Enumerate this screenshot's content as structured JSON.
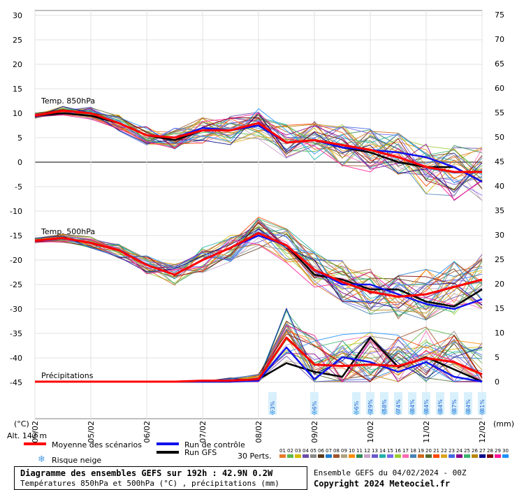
{
  "chart_data": {
    "type": "line",
    "left_axis": {
      "unit_label": "(°C)",
      "ticks": [
        30,
        25,
        20,
        15,
        10,
        5,
        0,
        -5,
        -10,
        -15,
        -20,
        -25,
        -30,
        -35,
        -40,
        -45
      ]
    },
    "right_axis": {
      "unit_label": "(mm)",
      "ticks": [
        75,
        70,
        65,
        60,
        55,
        50,
        45,
        40,
        35,
        30,
        25,
        20,
        15,
        10,
        5,
        0
      ]
    },
    "x_ticks": [
      "05/02",
      "05/02",
      "06/02",
      "07/02",
      "08/02",
      "09/02",
      "10/02",
      "11/02",
      "12/02"
    ],
    "panel_labels": {
      "t850": "Temp. 850hPa",
      "t500": "Temp. 500hPa",
      "precip": "Précipitations"
    },
    "altitude": "Alt. 143 m",
    "snow_risk": [
      "3%",
      "6%",
      "6%",
      "29%",
      "58%",
      "74%",
      "84%",
      "84%",
      "84%",
      "87%",
      "84%",
      "81%"
    ],
    "x_steps": [
      "0h",
      "12h",
      "24h",
      "36h",
      "48h",
      "60h",
      "72h",
      "84h",
      "96h",
      "108h",
      "120h",
      "132h",
      "144h",
      "156h",
      "168h",
      "180h",
      "192h"
    ],
    "series": [
      {
        "name": "Moyenne des scénarios",
        "panel": "t850",
        "values": [
          9.5,
          10.5,
          10,
          8,
          5.5,
          5,
          6.5,
          6.5,
          8,
          4,
          4.5,
          3.5,
          2.5,
          1,
          -1,
          -2,
          -2
        ]
      },
      {
        "name": "Run de contrôle",
        "panel": "t850",
        "values": [
          9.5,
          10.5,
          10,
          8,
          5.5,
          5,
          7,
          6.5,
          7.5,
          4,
          4.5,
          3,
          2.5,
          2,
          1,
          -1,
          -4
        ]
      },
      {
        "name": "Run GFS",
        "panel": "t850",
        "values": [
          9.5,
          10,
          9.5,
          8,
          5.5,
          4.5,
          6.5,
          6.5,
          7.5,
          4,
          4.5,
          3,
          2,
          0,
          -1,
          -1,
          -4
        ]
      },
      {
        "name": "Moyenne des scénarios",
        "panel": "t500",
        "values": [
          -16,
          -15.5,
          -16.5,
          -18,
          -21,
          -23,
          -20,
          -17.5,
          -14.5,
          -17,
          -22,
          -24.5,
          -26.5,
          -27.5,
          -27,
          -25.5,
          -24
        ]
      },
      {
        "name": "Run de contrôle",
        "panel": "t500",
        "values": [
          -16,
          -15.5,
          -16.5,
          -18,
          -21,
          -23,
          -20,
          -17.5,
          -15,
          -17,
          -22,
          -25,
          -25,
          -27,
          -29,
          -30,
          -28
        ]
      },
      {
        "name": "Run GFS",
        "panel": "t500",
        "values": [
          -16,
          -15.5,
          -16.5,
          -18,
          -21,
          -23,
          -20,
          -17.5,
          -14.5,
          -17,
          -23,
          -24,
          -26,
          -26,
          -28.5,
          -29.5,
          -26
        ]
      },
      {
        "name": "Moyenne des scénarios",
        "panel": "precip",
        "values": [
          0,
          0,
          0,
          0,
          0,
          0,
          0.2,
          0.2,
          0.5,
          9,
          3.5,
          3.2,
          3.5,
          3.2,
          4.8,
          4,
          1.5
        ]
      },
      {
        "name": "Run de contrôle",
        "panel": "precip",
        "values": [
          0,
          0,
          0,
          0,
          0,
          0,
          0,
          0,
          0.2,
          7,
          0.5,
          5,
          4,
          2,
          4,
          1,
          0
        ]
      },
      {
        "name": "Run GFS",
        "panel": "precip",
        "values": [
          0,
          0,
          0,
          0,
          0,
          0,
          0,
          0,
          0.5,
          3.8,
          2,
          1,
          9,
          3,
          5,
          2.5,
          0
        ]
      }
    ],
    "grid": true
  },
  "legend": {
    "mean": "Moyenne des scénarios",
    "control": "Run de contrôle",
    "gfs": "Run GFS",
    "snow": "Risque neige",
    "perts": "30 Perts.",
    "colors": {
      "mean": "#ff0000",
      "control": "#1111ee",
      "gfs": "#000000",
      "snow": "#4fa0e6"
    }
  },
  "perturbations": {
    "numbers": [
      "01",
      "02",
      "03",
      "04",
      "05",
      "06",
      "07",
      "08",
      "09",
      "10",
      "11",
      "12",
      "13",
      "14",
      "15",
      "16",
      "17",
      "18",
      "19",
      "20",
      "21",
      "22",
      "23",
      "24",
      "25",
      "26",
      "27",
      "28",
      "29",
      "30"
    ],
    "colors": [
      "#e87a2a",
      "#5ab84a",
      "#d6b800",
      "#6c4aa8",
      "#8a8a8a",
      "#5a3a1a",
      "#1c7ad0",
      "#a0522d",
      "#b0a080",
      "#ff8c00",
      "#2e8b57",
      "#c8a0c8",
      "#6a5acd",
      "#20b2aa",
      "#7b68ee",
      "#9acd32",
      "#ff69b4",
      "#4682b4",
      "#d2691e",
      "#556b2f",
      "#ff4500",
      "#daa520",
      "#4169e1",
      "#8b008b",
      "#3cb371",
      "#b8860b",
      "#00008b",
      "#800000",
      "#ff1493",
      "#1e90ff"
    ]
  },
  "footer": {
    "title": "Diagramme des ensembles GEFS sur 192h : 42.9N 0.2W",
    "subtitle": "Températures 850hPa et 500hPa (°C) , précipitations (mm)",
    "ensemble": "Ensemble GEFS du 04/02/2024 - 00Z",
    "copyright": "Copyright 2024 Meteociel.fr"
  }
}
